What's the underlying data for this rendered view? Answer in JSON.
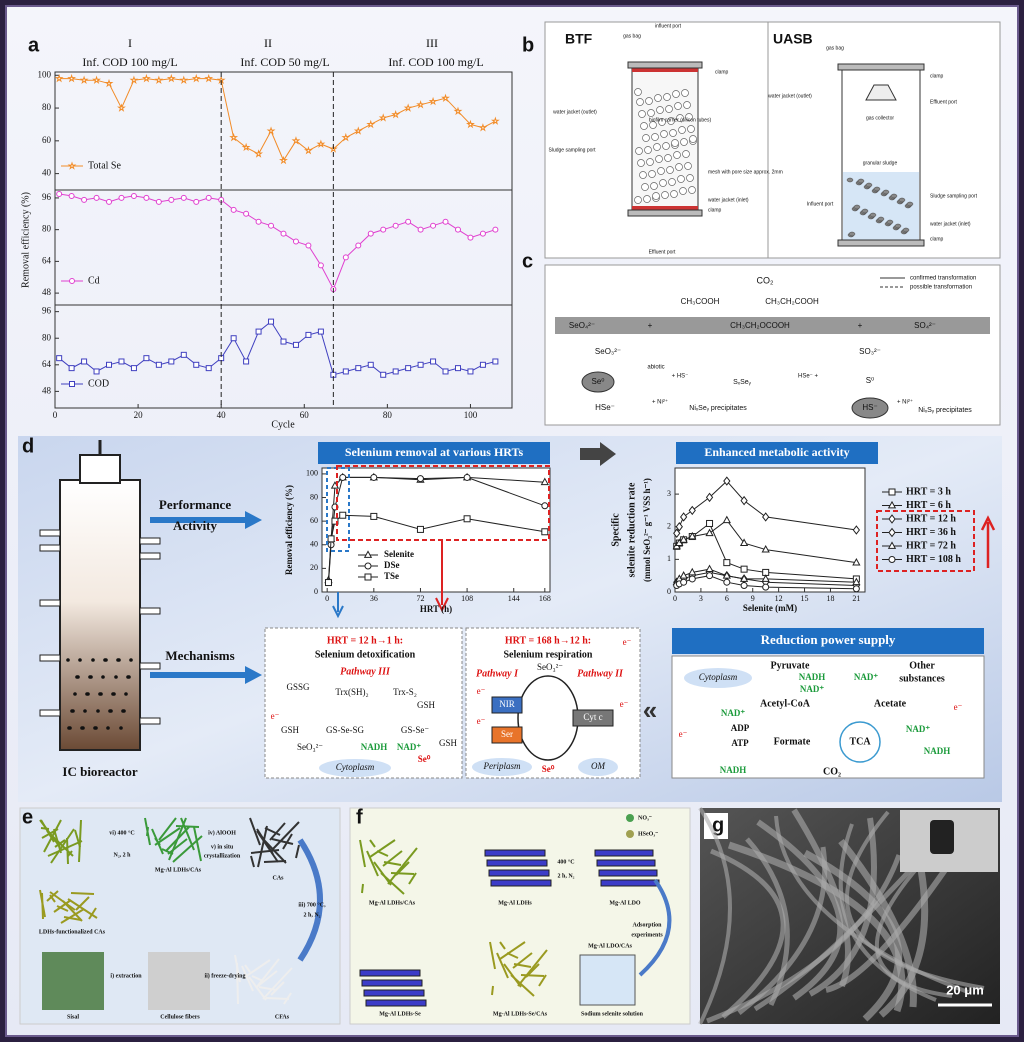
{
  "panel_labels": [
    "a",
    "b",
    "c",
    "d",
    "e",
    "f",
    "g"
  ],
  "chart_data": [
    {
      "type": "line",
      "x": [
        1,
        4,
        7,
        10,
        13,
        16,
        19,
        22,
        25,
        28,
        31,
        34,
        37,
        40,
        43,
        46,
        49,
        52,
        55,
        58,
        61,
        64,
        67,
        70,
        73,
        76,
        79,
        82,
        85,
        88,
        91,
        94,
        97,
        100,
        103,
        106
      ],
      "xlim": [
        0,
        110
      ],
      "ylim": [
        30,
        102
      ],
      "yticks": [
        40,
        60,
        80,
        100
      ],
      "annotations": [
        "I",
        "Inf. COD 100 mg/L",
        "II",
        "Inf. COD 50 mg/L",
        "III",
        "Inf. COD 100 mg/L"
      ],
      "phase_boundaries": [
        40,
        67
      ],
      "series": [
        {
          "name": "Total Se",
          "color": "#f28c28",
          "marker": "star",
          "values": [
            98,
            98,
            97,
            97,
            95,
            80,
            97,
            98,
            97,
            98,
            97,
            98,
            98,
            97,
            62,
            56,
            52,
            66,
            48,
            60,
            54,
            58,
            55,
            62,
            66,
            70,
            74,
            76,
            80,
            82,
            84,
            86,
            78,
            70,
            68,
            72
          ]
        }
      ]
    },
    {
      "type": "line",
      "x": [
        1,
        4,
        7,
        10,
        13,
        16,
        19,
        22,
        25,
        28,
        31,
        34,
        37,
        40,
        43,
        46,
        49,
        52,
        55,
        58,
        61,
        64,
        67,
        70,
        73,
        76,
        79,
        82,
        85,
        88,
        91,
        94,
        97,
        100,
        103,
        106
      ],
      "xlim": [
        0,
        110
      ],
      "ylim": [
        42,
        100
      ],
      "yticks": [
        48,
        64,
        80,
        96
      ],
      "ylabel": "Removal efficiency (%)",
      "series": [
        {
          "name": "Cd",
          "color": "#e040d0",
          "marker": "circle",
          "values": [
            98,
            97,
            95,
            96,
            94,
            96,
            97,
            96,
            94,
            95,
            96,
            94,
            96,
            95,
            90,
            88,
            84,
            82,
            78,
            74,
            72,
            62,
            50,
            66,
            72,
            78,
            80,
            82,
            84,
            80,
            82,
            84,
            80,
            76,
            78,
            80
          ]
        }
      ]
    },
    {
      "type": "line",
      "x": [
        1,
        4,
        7,
        10,
        13,
        16,
        19,
        22,
        25,
        28,
        31,
        34,
        37,
        40,
        43,
        46,
        49,
        52,
        55,
        58,
        61,
        64,
        67,
        70,
        73,
        76,
        79,
        82,
        85,
        88,
        91,
        94,
        97,
        100,
        103,
        106
      ],
      "xlim": [
        0,
        110
      ],
      "ylim": [
        38,
        100
      ],
      "yticks": [
        48,
        64,
        80,
        96
      ],
      "xticks": [
        0,
        20,
        40,
        60,
        80,
        100
      ],
      "xlabel": "Cycle",
      "series": [
        {
          "name": "COD",
          "color": "#4040c0",
          "marker": "square",
          "values": [
            68,
            62,
            66,
            60,
            64,
            66,
            62,
            68,
            64,
            66,
            70,
            64,
            62,
            68,
            80,
            66,
            84,
            90,
            78,
            76,
            82,
            84,
            58,
            60,
            62,
            64,
            58,
            60,
            62,
            64,
            66,
            60,
            62,
            60,
            64,
            66
          ]
        }
      ]
    },
    {
      "type": "line",
      "title": "Selenium removal at various HRTs",
      "x": [
        1,
        3,
        6,
        12,
        36,
        72,
        108,
        168
      ],
      "xlim": [
        -4,
        172
      ],
      "ylim": [
        0,
        105
      ],
      "xticks": [
        0,
        36,
        72,
        108,
        144,
        168
      ],
      "yticks": [
        0,
        20,
        40,
        60,
        80,
        100
      ],
      "xlabel": "HRT (h)",
      "ylabel": "Removal efficiency (%)",
      "series": [
        {
          "name": "Selenite",
          "color": "#222222",
          "marker": "triangle",
          "values": [
            10,
            45,
            90,
            97,
            97,
            95,
            97,
            93
          ]
        },
        {
          "name": "DSe",
          "color": "#222222",
          "marker": "circle",
          "values": [
            8,
            40,
            72,
            97,
            97,
            96,
            97,
            73
          ]
        },
        {
          "name": "TSe",
          "color": "#222222",
          "marker": "square",
          "values": [
            8,
            45,
            60,
            65,
            64,
            53,
            62,
            51
          ]
        }
      ]
    },
    {
      "type": "line",
      "title": "Enhanced metabolic activity",
      "x": [
        0.2,
        0.5,
        1,
        2,
        4,
        6,
        8,
        10.5,
        21
      ],
      "xlim": [
        0,
        22
      ],
      "ylim": [
        0,
        3.8
      ],
      "xticks": [
        0,
        3,
        6,
        9,
        12,
        15,
        18,
        21
      ],
      "yticks": [
        0,
        1,
        2,
        3
      ],
      "xlabel": "Selenite (mM)",
      "ylabel": "Specific",
      "ylabel2": "selenite reduction rate",
      "ylabel3": "(mmol SeO₃²⁻ g⁻¹ VSS h⁻¹)",
      "series": [
        {
          "name": "HRT = 3 h",
          "color": "#222222",
          "marker": "square",
          "values": [
            1.4,
            1.5,
            1.6,
            1.7,
            2.1,
            0.9,
            0.7,
            0.6,
            0.4
          ]
        },
        {
          "name": "HRT = 6 h",
          "color": "#222222",
          "marker": "triangle",
          "values": [
            1.4,
            1.5,
            1.6,
            1.7,
            1.8,
            2.2,
            1.5,
            1.3,
            0.9
          ]
        },
        {
          "name": "HRT = 12 h",
          "color": "#222222",
          "marker": "diamond",
          "values": [
            1.8,
            2.0,
            2.3,
            2.5,
            2.9,
            3.4,
            2.8,
            2.3,
            1.9
          ]
        },
        {
          "name": "HRT = 36 h",
          "color": "#222222",
          "marker": "diamond",
          "values": [
            0.3,
            0.35,
            0.4,
            0.5,
            0.6,
            0.5,
            0.4,
            0.3,
            0.2
          ]
        },
        {
          "name": "HRT = 72 h",
          "color": "#222222",
          "marker": "triangle",
          "values": [
            0.3,
            0.4,
            0.5,
            0.6,
            0.7,
            0.5,
            0.4,
            0.4,
            0.3
          ]
        },
        {
          "name": "HRT = 108 h",
          "color": "#222222",
          "marker": "circle",
          "values": [
            0.2,
            0.25,
            0.3,
            0.4,
            0.5,
            0.3,
            0.2,
            0.15,
            0.1
          ]
        }
      ]
    }
  ],
  "panel_b": {
    "labels": [
      "BTF",
      "gas bag",
      "influent port",
      "clamp",
      "water jacket (outlet)",
      "biofilm carrier (silicon tubes)",
      "Sludge sampling port",
      "mesh with pore size approx. 2mm",
      "water jacket (inlet)",
      "clamp",
      "Effluent port",
      "UASB",
      "gas bag",
      "clamp",
      "water jacket (outlet)",
      "Effluent port",
      "gas collector",
      "granular sludge",
      "Sludge sampling port",
      "Influent port",
      "water jacket (inlet)",
      "clamp"
    ]
  },
  "panel_c": {
    "labels": [
      "CO₂",
      "CH₃COOH",
      "CH₃CH₂COOH",
      "SeO₄²⁻",
      "+",
      "CH₃CH₂OCOOH",
      "+",
      "SO₄²⁻",
      "SeO₃²⁻",
      "SO₃²⁻",
      "abiotic",
      "Se⁰",
      "+ HS⁻",
      "SₓSeᵧ",
      "HSe⁻ +",
      "S⁰",
      "HSe⁻",
      "+ Ni²⁺",
      "NiₓSeᵧ precipitates",
      "HS⁻",
      "+ Ni²⁺",
      "NiₓSᵧ precipitates",
      "confirmed transformation",
      "possible transformation"
    ]
  },
  "panel_d": {
    "labels": [
      "Performance",
      "Activity",
      "Mechanisms",
      "IC bioreactor",
      "Reduction power supply"
    ],
    "box1": [
      "HRT = 12 h→1 h:",
      "Selenium detoxification",
      "Pathway III",
      "GSSG",
      "Trx(SH)₂",
      "Trx-S₂",
      "GSH",
      "GSH",
      "GS-Se-SG",
      "GS-Se⁻",
      "SeO₃²⁻",
      "NADH",
      "NAD⁺",
      "GSH",
      "Se⁰",
      "Cytoplasm",
      "e⁻"
    ],
    "box2": [
      "HRT = 168 h→12 h:",
      "Selenium respiration",
      "SeO₃²⁻",
      "Pathway I",
      "Pathway II",
      "NIR",
      "Ser",
      "Cyt c",
      "Se⁰",
      "Periplasm",
      "OM",
      "e⁻",
      "e⁻",
      "e⁻"
    ],
    "box3": [
      "Cytoplasm",
      "Pyruvate",
      "Other",
      "substances",
      "NADH",
      "NAD⁺",
      "NAD⁺",
      "Acetyl-CoA",
      "Acetate",
      "NAD⁺",
      "ADP",
      "ATP",
      "Formate",
      "TCA",
      "NAD⁺",
      "NADH",
      "CO₂",
      "NADH",
      "e⁻",
      "e⁻",
      "e⁻"
    ]
  },
  "panel_e": {
    "labels": [
      "vi) 400 °C",
      "N₂, 2 h",
      "iv) AlOOH",
      "v) in situ",
      "crystallization",
      "Mg-Al LDHs/CAs",
      "CAs",
      "LDHs-functionalized CAs",
      "iii) 700 °C,",
      "2 h, N₂",
      "Sisal",
      "i) extraction",
      "Cellulose fibers",
      "ii) freeze-drying",
      "CFAs"
    ]
  },
  "panel_f": {
    "labels": [
      "NO₃⁻",
      "HSeO₃⁻",
      "Mg-Al LDHs/CAs",
      "Mg-Al LDHs",
      "400 °C",
      "2 h, N₂",
      "Mg-Al LDO",
      "Adsorption",
      "experiments",
      "Mg-Al LDO/CAs",
      "Mg-Al LDHs-Se",
      "Mg-Al LDHs-Se/CAs",
      "Sodium selenite solution"
    ]
  },
  "panel_g": {
    "scale_bar": "20 μm"
  }
}
